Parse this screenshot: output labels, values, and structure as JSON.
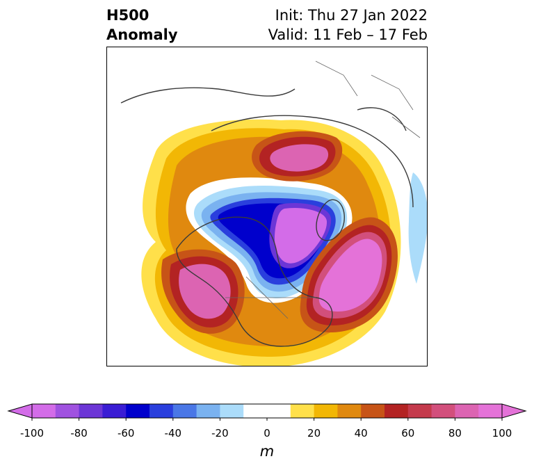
{
  "title": {
    "left_line1": "H500",
    "left_line2": "Anomaly",
    "right_line1": "Init: Thu 27 Jan 2022",
    "right_line2": "Valid: 11 Feb – 17 Feb"
  },
  "colorbar": {
    "unit": "m",
    "ticks": [
      "-100",
      "-80",
      "-60",
      "-40",
      "-20",
      "0",
      "20",
      "40",
      "60",
      "80",
      "100"
    ],
    "tick_values": [
      -100,
      -80,
      -60,
      -40,
      -20,
      0,
      20,
      40,
      60,
      80,
      100
    ],
    "min": -100,
    "max": 100,
    "bins": [
      {
        "from": -100,
        "to": -90,
        "color": "#d36ce8"
      },
      {
        "from": -90,
        "to": -80,
        "color": "#a052e0"
      },
      {
        "from": -80,
        "to": -70,
        "color": "#6c36d6"
      },
      {
        "from": -70,
        "to": -60,
        "color": "#3a1dd4"
      },
      {
        "from": -60,
        "to": -50,
        "color": "#0000cc"
      },
      {
        "from": -50,
        "to": -40,
        "color": "#2a3fdd"
      },
      {
        "from": -40,
        "to": -30,
        "color": "#4a77e6"
      },
      {
        "from": -30,
        "to": -20,
        "color": "#7ab2f0"
      },
      {
        "from": -20,
        "to": -10,
        "color": "#abdcfa"
      },
      {
        "from": -10,
        "to": 0,
        "color": "#ffffff"
      },
      {
        "from": 0,
        "to": 10,
        "color": "#ffffff"
      },
      {
        "from": 10,
        "to": 20,
        "color": "#ffe04a"
      },
      {
        "from": 20,
        "to": 30,
        "color": "#f2b705"
      },
      {
        "from": 30,
        "to": 40,
        "color": "#e0890f"
      },
      {
        "from": 40,
        "to": 50,
        "color": "#c75417"
      },
      {
        "from": 50,
        "to": 60,
        "color": "#b32323"
      },
      {
        "from": 60,
        "to": 70,
        "color": "#c43a4c"
      },
      {
        "from": 70,
        "to": 80,
        "color": "#d24f7c"
      },
      {
        "from": 80,
        "to": 90,
        "color": "#dc64b2"
      },
      {
        "from": 90,
        "to": 100,
        "color": "#e472d8"
      }
    ],
    "extend_min_color": "#d36ce8",
    "extend_max_color": "#e472d8"
  },
  "map": {
    "features": [
      {
        "name": "positive-anomaly-north-atlantic",
        "sign": "positive",
        "peak_m": 100
      },
      {
        "name": "positive-anomaly-northeast-pacific",
        "sign": "positive",
        "peak_m": 90
      },
      {
        "name": "positive-anomaly-siberia",
        "sign": "positive",
        "peak_m": 90
      },
      {
        "name": "negative-anomaly-arctic-canada",
        "sign": "negative",
        "peak_m": -100
      }
    ],
    "colors": {
      "coastline": "#3a3a3a",
      "borders": "#555555"
    }
  }
}
